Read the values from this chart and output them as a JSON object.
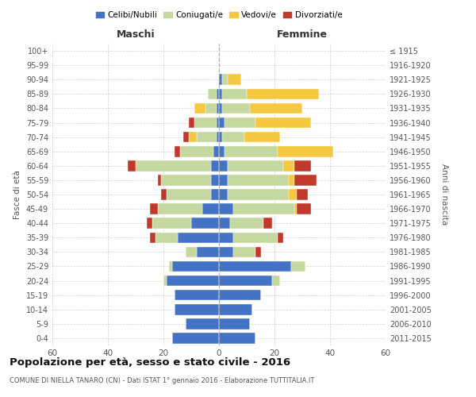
{
  "age_groups": [
    "0-4",
    "5-9",
    "10-14",
    "15-19",
    "20-24",
    "25-29",
    "30-34",
    "35-39",
    "40-44",
    "45-49",
    "50-54",
    "55-59",
    "60-64",
    "65-69",
    "70-74",
    "75-79",
    "80-84",
    "85-89",
    "90-94",
    "95-99",
    "100+"
  ],
  "birth_years": [
    "2011-2015",
    "2006-2010",
    "2001-2005",
    "1996-2000",
    "1991-1995",
    "1986-1990",
    "1981-1985",
    "1976-1980",
    "1971-1975",
    "1966-1970",
    "1961-1965",
    "1956-1960",
    "1951-1955",
    "1946-1950",
    "1941-1945",
    "1936-1940",
    "1931-1935",
    "1926-1930",
    "1921-1925",
    "1916-1920",
    "≤ 1915"
  ],
  "male_celibi": [
    17,
    12,
    16,
    16,
    19,
    17,
    8,
    15,
    10,
    6,
    3,
    3,
    3,
    2,
    1,
    1,
    1,
    1,
    0,
    0,
    0
  ],
  "male_coniugati": [
    0,
    0,
    0,
    0,
    1,
    1,
    4,
    8,
    14,
    16,
    16,
    18,
    27,
    12,
    7,
    8,
    4,
    3,
    0,
    0,
    0
  ],
  "male_vedovi": [
    0,
    0,
    0,
    0,
    0,
    0,
    0,
    0,
    0,
    0,
    0,
    0,
    0,
    0,
    3,
    0,
    4,
    0,
    0,
    0,
    0
  ],
  "male_divorziati": [
    0,
    0,
    0,
    0,
    0,
    0,
    0,
    2,
    2,
    3,
    2,
    1,
    3,
    2,
    2,
    2,
    0,
    0,
    0,
    0,
    0
  ],
  "female_celibi": [
    13,
    11,
    12,
    15,
    19,
    26,
    5,
    5,
    4,
    5,
    3,
    3,
    3,
    2,
    1,
    2,
    1,
    1,
    1,
    0,
    0
  ],
  "female_coniugati": [
    0,
    0,
    0,
    0,
    3,
    5,
    8,
    16,
    12,
    22,
    22,
    22,
    20,
    19,
    8,
    11,
    10,
    9,
    2,
    0,
    0
  ],
  "female_vedovi": [
    0,
    0,
    0,
    0,
    0,
    0,
    0,
    0,
    0,
    1,
    3,
    2,
    4,
    20,
    13,
    20,
    19,
    26,
    5,
    0,
    0
  ],
  "female_divorziati": [
    0,
    0,
    0,
    0,
    0,
    0,
    2,
    2,
    3,
    5,
    4,
    8,
    6,
    0,
    0,
    0,
    0,
    0,
    0,
    0,
    0
  ],
  "colors": {
    "celibi": "#4472c4",
    "coniugati": "#c5d8a0",
    "vedovi": "#f5c842",
    "divorziati": "#c0392b"
  },
  "title": "Popolazione per età, sesso e stato civile - 2016",
  "subtitle": "COMUNE DI NIELLA TANARO (CN) - Dati ISTAT 1° gennaio 2016 - Elaborazione TUTTITALIA.IT",
  "xlabel_left": "Maschi",
  "xlabel_right": "Femmine",
  "ylabel_left": "Fasce di età",
  "ylabel_right": "Anni di nascita",
  "legend_labels": [
    "Celibi/Nubili",
    "Coniugati/e",
    "Vedovi/e",
    "Divorziati/e"
  ],
  "xlim": 60,
  "background_color": "#ffffff",
  "grid_color": "#cccccc"
}
